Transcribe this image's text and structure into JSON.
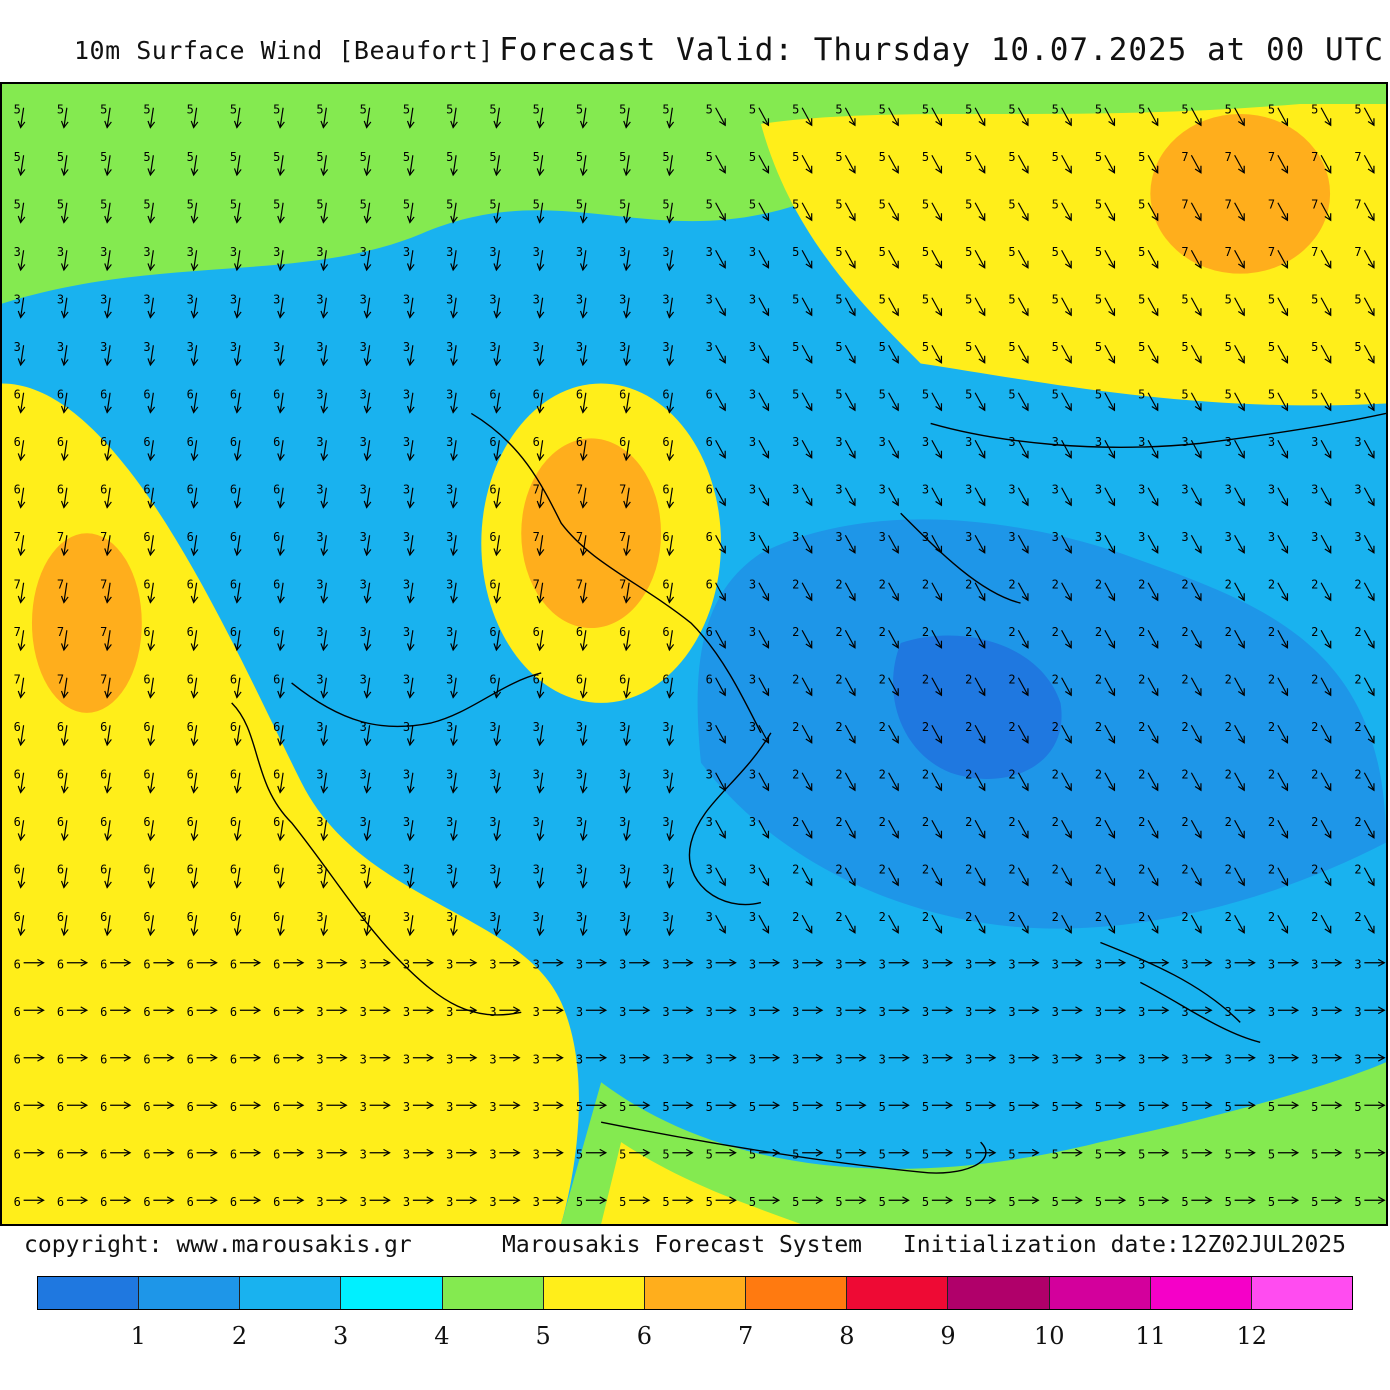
{
  "header": {
    "left_title": "10m Surface Wind [Beaufort]",
    "right_title": "Forecast Valid:  Thursday 10.07.2025 at 00 UTC"
  },
  "footer": {
    "copyright": "copyright: www.marousakis.gr",
    "system": "Marousakis Forecast System",
    "init": "Initialization date:12Z02JUL2025"
  },
  "legend": {
    "labels": [
      "1",
      "2",
      "3",
      "4",
      "5",
      "6",
      "7",
      "8",
      "9",
      "10",
      "11",
      "12"
    ],
    "colors": [
      "#1f78e0",
      "#1e96e8",
      "#19b2ef",
      "#00f0ff",
      "#84ea50",
      "#ffee1a",
      "#ffae1c",
      "#ff7a10",
      "#ee0a34",
      "#b0006a",
      "#d3009c",
      "#f500c8",
      "#ff4cf0"
    ]
  },
  "map": {
    "background_color": "#19b2ef",
    "wind_field_regions": [
      {
        "level": 5,
        "color": "#84ea50",
        "area": "northwest band"
      },
      {
        "level": 6,
        "color": "#ffee1a",
        "area": "western Ionian Sea"
      },
      {
        "level": 7,
        "color": "#ffae1c",
        "area": "western Ionian core"
      },
      {
        "level": 6,
        "color": "#ffee1a",
        "area": "Thermaic Gulf"
      },
      {
        "level": 7,
        "color": "#ffae1c",
        "area": "Thermaic Gulf core"
      },
      {
        "level": 6,
        "color": "#ffee1a",
        "area": "northeast"
      },
      {
        "level": 7,
        "color": "#ffae1c",
        "area": "northeast core"
      },
      {
        "level": 2,
        "color": "#1e96e8",
        "area": "central Aegean"
      },
      {
        "level": 1,
        "color": "#1f78e0",
        "area": "east Aegean cores"
      },
      {
        "level": 5,
        "color": "#84ea50",
        "area": "south of Crete"
      },
      {
        "level": 6,
        "color": "#ffee1a",
        "area": "south of Crete"
      }
    ]
  }
}
